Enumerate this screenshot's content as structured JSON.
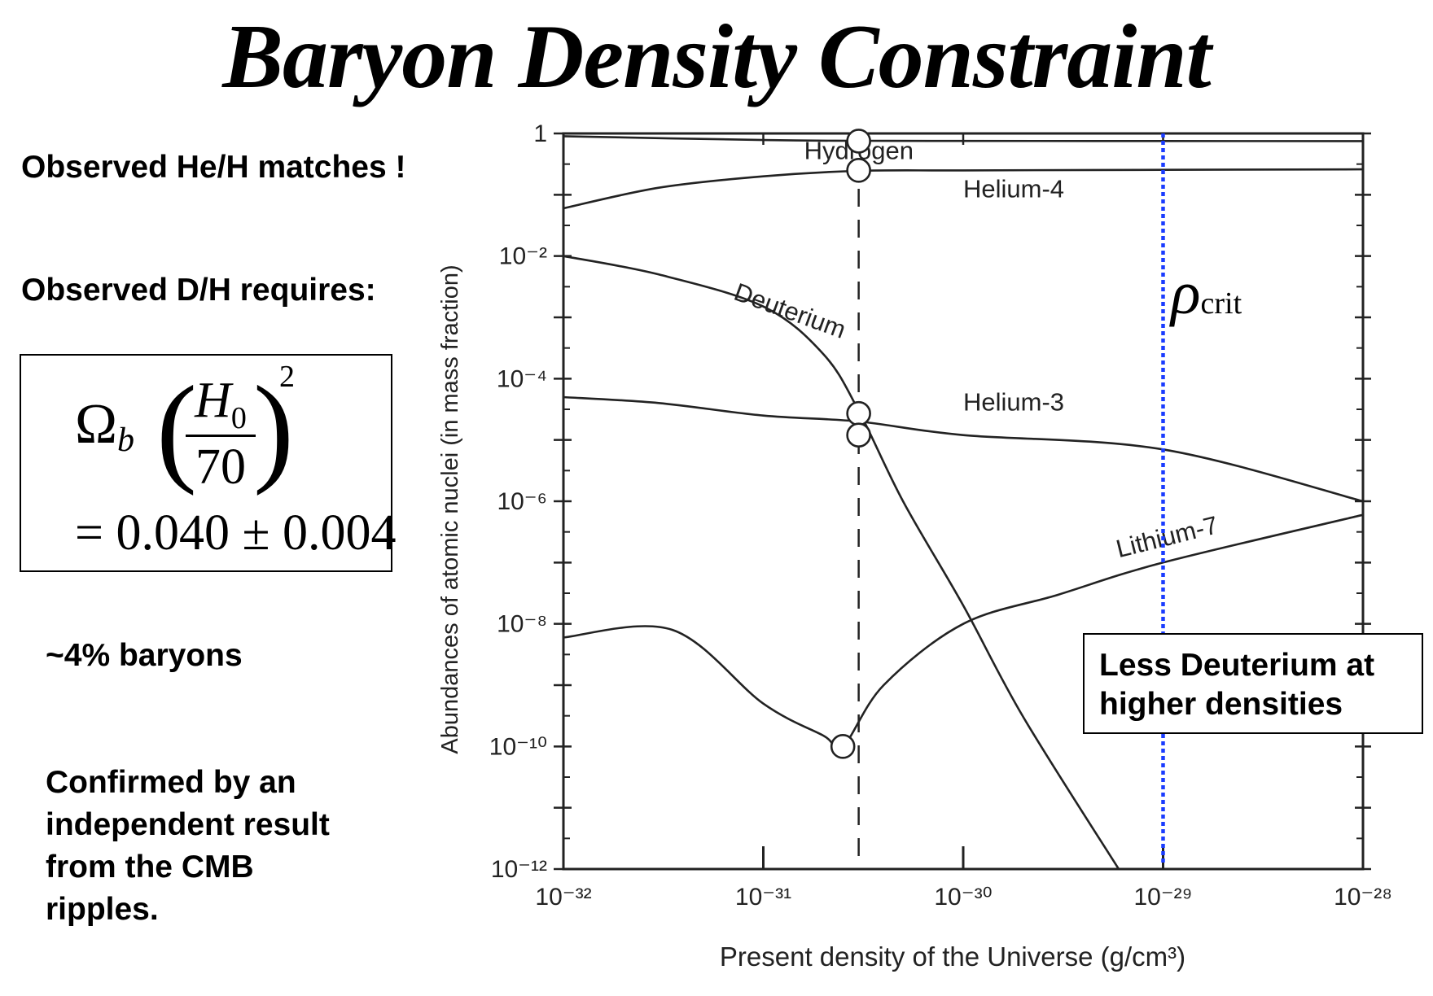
{
  "slide": {
    "title": "Baryon Density Constraint",
    "bullets": {
      "he_h": "Observed He/H matches !",
      "d_h": "Observed D/H requires:",
      "baryons": "~4% baryons",
      "cmb": "Confirmed by an independent result from the CMB ripples."
    },
    "formula": {
      "omega": "Ω",
      "omega_sub": "b",
      "numerator": "H",
      "numerator_sub": "0",
      "denominator": "70",
      "exponent": "2",
      "value": "= 0.040 ± 0.004",
      "left_paren": "(",
      "right_paren": ")"
    },
    "note": "Less Deuterium at higher densities",
    "rho": {
      "symbol": "ρ",
      "sub": "crit"
    },
    "colors": {
      "crit_line": "#1a3cff",
      "ink": "#222222"
    }
  },
  "chart_data": {
    "type": "line",
    "title": "",
    "xlabel": "Present density of the Universe (g/cm³)",
    "ylabel": "Abundances of atomic nuclei (in mass fraction)",
    "xscale": "log",
    "yscale": "log",
    "xlim": [
      1e-32,
      1e-28
    ],
    "ylim": [
      1e-12,
      1
    ],
    "x_ticks": [
      {
        "value": 1e-32,
        "label": "10⁻³²"
      },
      {
        "value": 1e-31,
        "label": "10⁻³¹"
      },
      {
        "value": 1e-30,
        "label": "10⁻³⁰"
      },
      {
        "value": 1e-29,
        "label": "10⁻²⁹"
      },
      {
        "value": 1e-28,
        "label": "10⁻²⁸"
      }
    ],
    "y_ticks": [
      {
        "value": 1,
        "label": "1"
      },
      {
        "value": 0.01,
        "label": "10⁻²"
      },
      {
        "value": 0.0001,
        "label": "10⁻⁴"
      },
      {
        "value": 1e-06,
        "label": "10⁻⁶"
      },
      {
        "value": 1e-08,
        "label": "10⁻⁸"
      },
      {
        "value": 1e-10,
        "label": "10⁻¹⁰"
      },
      {
        "value": 1e-12,
        "label": "10⁻¹²"
      }
    ],
    "series": [
      {
        "name": "Hydrogen",
        "x": [
          1e-32,
          1e-31,
          3e-31,
          1e-30,
          1e-29,
          1e-28
        ],
        "y": [
          0.9,
          0.78,
          0.76,
          0.755,
          0.752,
          0.75
        ]
      },
      {
        "name": "Helium-4",
        "x": [
          1e-32,
          3e-32,
          1e-31,
          3e-31,
          1e-30,
          1e-29,
          1e-28
        ],
        "y": [
          0.06,
          0.13,
          0.2,
          0.245,
          0.25,
          0.255,
          0.26
        ]
      },
      {
        "name": "Deuterium",
        "x": [
          1e-32,
          3e-32,
          1e-31,
          2e-31,
          3e-31,
          5e-31,
          1e-30,
          2e-30,
          6e-30
        ],
        "y": [
          0.01,
          0.005,
          0.0015,
          0.00025,
          3e-05,
          1e-06,
          2e-08,
          3e-10,
          1e-12
        ]
      },
      {
        "name": "Helium-3",
        "x": [
          1e-32,
          3e-32,
          1e-31,
          3e-31,
          1e-30,
          1e-29,
          1e-28
        ],
        "y": [
          5e-05,
          4e-05,
          2.5e-05,
          2e-05,
          1.2e-05,
          7e-06,
          1e-06
        ]
      },
      {
        "name": "Lithium-7",
        "x": [
          1e-32,
          3.5e-32,
          1e-31,
          2e-31,
          2.5e-31,
          4e-31,
          1e-30,
          3e-30,
          1e-29,
          1e-28
        ],
        "y": [
          6e-09,
          8e-09,
          5e-10,
          1.5e-10,
          1e-10,
          1e-09,
          1e-08,
          3e-08,
          1e-07,
          6e-07
        ]
      }
    ],
    "markers": [
      {
        "x": 3e-31,
        "y": 0.75
      },
      {
        "x": 3e-31,
        "y": 0.25
      },
      {
        "x": 3e-31,
        "y": 2.7e-05
      },
      {
        "x": 3e-31,
        "y": 1.2e-05
      },
      {
        "x": 2.5e-31,
        "y": 1e-10
      }
    ],
    "reference_lines": [
      {
        "x": 3e-31,
        "style": "dashed"
      },
      {
        "x": 1e-29,
        "style": "dotted"
      }
    ],
    "grid": false,
    "legend": "none"
  }
}
